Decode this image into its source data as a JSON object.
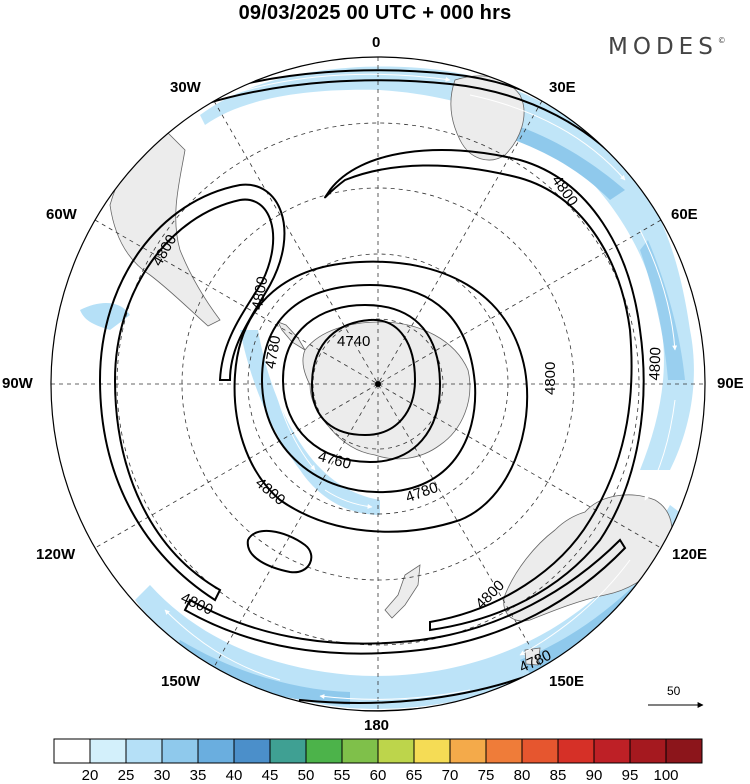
{
  "title": "09/03/2025  00 UTC  + 000 hrs",
  "brand": "MODES",
  "brand_mark": "©",
  "longitude_labels": {
    "top": "0",
    "bottom": "180",
    "left": "90W",
    "right": "90E",
    "upper_left_1": "30W",
    "upper_left_2": "60W",
    "upper_right_1": "30E",
    "upper_right_2": "60E",
    "lower_left_1": "120W",
    "lower_left_2": "150W",
    "lower_right_1": "120E",
    "lower_right_2": "150E"
  },
  "contour_labels": [
    "4800",
    "4800",
    "4800",
    "4800",
    "4800",
    "4800",
    "4800",
    "4780",
    "4780",
    "4780",
    "4760",
    "4740"
  ],
  "wind_scale": {
    "label": "50"
  },
  "colorbar": {
    "labels": [
      "20",
      "25",
      "30",
      "35",
      "40",
      "45",
      "50",
      "55",
      "60",
      "65",
      "70",
      "75",
      "80",
      "85",
      "90",
      "95",
      "100"
    ],
    "colors": [
      "#ffffff",
      "#d3f0fb",
      "#b5e0f7",
      "#8fc9ec",
      "#6aaedf",
      "#4b8fca",
      "#3fa093",
      "#4cb34a",
      "#7fc04a",
      "#bdd54b",
      "#f5dc55",
      "#f4aa4a",
      "#ef7c39",
      "#e6562f",
      "#d63027",
      "#be2026",
      "#a5191f",
      "#8c151b"
    ]
  }
}
